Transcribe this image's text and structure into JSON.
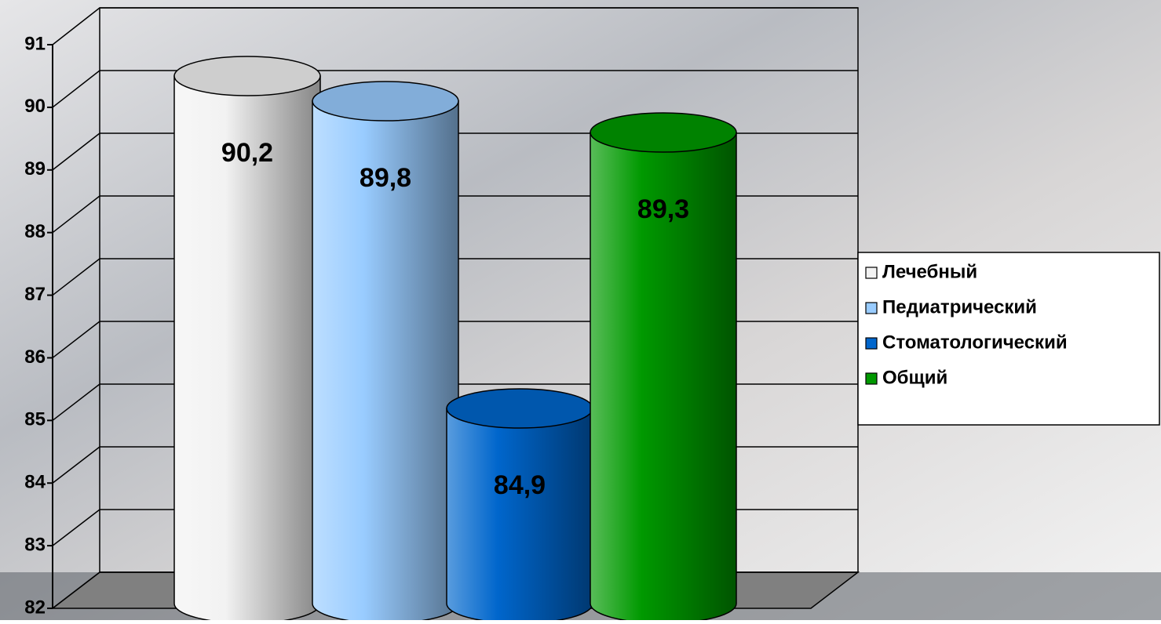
{
  "chart_data": {
    "type": "bar",
    "series": [
      {
        "name": "Лечебный",
        "color": "#f2f2f2",
        "values": [
          90.2
        ],
        "value_labels": [
          "90,2"
        ]
      },
      {
        "name": "Педиатрический",
        "color": "#99ccff",
        "values": [
          89.8
        ],
        "value_labels": [
          "89,8"
        ]
      },
      {
        "name": "Стоматологический",
        "color": "#0066cc",
        "values": [
          84.9
        ],
        "value_labels": [
          "84,9"
        ]
      },
      {
        "name": "Общий",
        "color": "#009900",
        "values": [
          89.3
        ],
        "value_labels": [
          "89,3"
        ]
      }
    ],
    "ylim": [
      82,
      91
    ],
    "yticks": [
      82,
      83,
      84,
      85,
      86,
      87,
      88,
      89,
      90,
      91
    ],
    "grid": true,
    "legend": "right"
  }
}
